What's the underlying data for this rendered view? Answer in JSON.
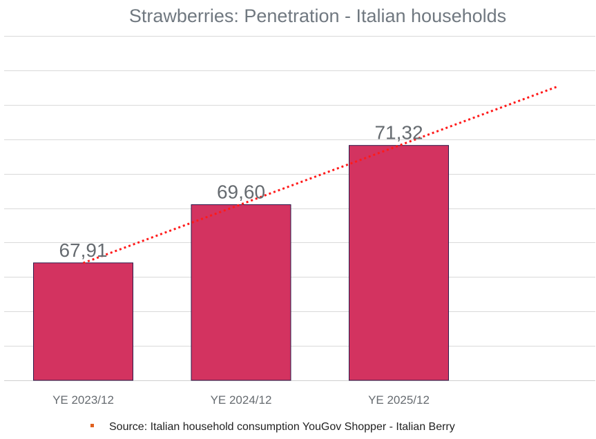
{
  "chart_data": {
    "type": "bar",
    "title": "Strawberries: Penetration - Italian households",
    "categories": [
      "YE 2023/12",
      "YE 2024/12",
      "YE 2025/12"
    ],
    "values": [
      67.91,
      69.6,
      71.32
    ],
    "value_labels": [
      "67,91",
      "69,60",
      "71,32"
    ],
    "ylim": [
      64.5,
      74.5
    ],
    "grid_step": 1,
    "xlabel": "",
    "ylabel": "",
    "grid": true,
    "trendline": {
      "type": "linear",
      "style": "dotted",
      "extends_periods": 1
    }
  },
  "source": {
    "text": "Source: Italian household consumption YouGov Shopper - Italian Berry"
  },
  "colors": {
    "bar": "#d33360",
    "trend": "#ff1a1a",
    "bullet": "#e0601e"
  }
}
